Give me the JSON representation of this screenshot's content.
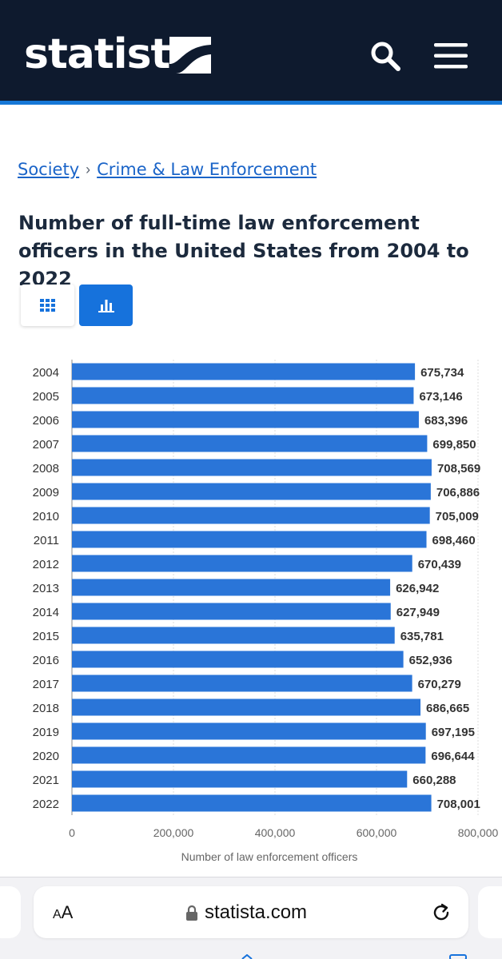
{
  "header": {
    "logo_text": "statista",
    "search_icon": "search-icon",
    "menu_icon": "hamburger-menu-icon",
    "background": "#0e1a2e",
    "accent": "#1677d6"
  },
  "breadcrumb": {
    "items": [
      "Society",
      "Crime & Law Enforcement"
    ],
    "separator": "›"
  },
  "title": "Number of full-time law enforcement officers in the United States from 2004 to 2022",
  "view_toggle": {
    "table_icon": "grid-table-icon",
    "chart_icon": "bar-chart-icon",
    "active": "chart"
  },
  "chart_data": {
    "type": "bar",
    "orientation": "horizontal",
    "categories": [
      "2004",
      "2005",
      "2006",
      "2007",
      "2008",
      "2009",
      "2010",
      "2011",
      "2012",
      "2013",
      "2014",
      "2015",
      "2016",
      "2017",
      "2018",
      "2019",
      "2020",
      "2021",
      "2022"
    ],
    "values": [
      675734,
      673146,
      683396,
      699850,
      708569,
      706886,
      705009,
      698460,
      670439,
      626942,
      627949,
      635781,
      652936,
      670279,
      686665,
      697195,
      696644,
      660288,
      708001
    ],
    "value_labels": [
      "675,734",
      "673,146",
      "683,396",
      "699,850",
      "708,569",
      "706,886",
      "705,009",
      "698,460",
      "670,439",
      "626,942",
      "627,949",
      "635,781",
      "652,936",
      "670,279",
      "686,665",
      "697,195",
      "696,644",
      "660,288",
      "708,001"
    ],
    "xlabel": "Number of law enforcement officers",
    "ylabel": "",
    "xlim": [
      0,
      800000
    ],
    "x_ticks": [
      0,
      200000,
      400000,
      600000,
      800000
    ],
    "x_tick_labels": [
      "0",
      "200,000",
      "400,000",
      "600,000",
      "800,000"
    ],
    "bar_color": "#2a75d8",
    "grid": true
  },
  "browser": {
    "text_size_label_small": "A",
    "text_size_label_large": "A",
    "lock_icon": "lock-icon",
    "url": "statista.com",
    "reload_icon": "reload-icon"
  }
}
